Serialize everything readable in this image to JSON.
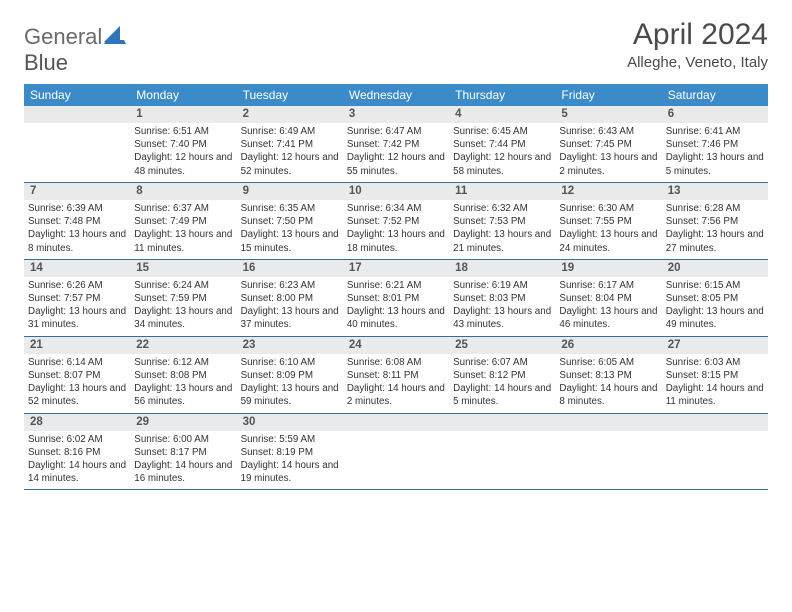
{
  "brand": {
    "part1": "General",
    "part2": "Blue"
  },
  "title": "April 2024",
  "location": "Alleghe, Veneto, Italy",
  "colors": {
    "header_bg": "#3b8bc9",
    "header_fg": "#ffffff",
    "band_bg": "#e9eaeb",
    "rule": "#3b6a94",
    "logo_blue": "#2f76b9",
    "text": "#333333"
  },
  "dow": [
    "Sunday",
    "Monday",
    "Tuesday",
    "Wednesday",
    "Thursday",
    "Friday",
    "Saturday"
  ],
  "first_weekday": 1,
  "days": [
    {
      "n": 1,
      "sr": "6:51 AM",
      "ss": "7:40 PM",
      "dl": "12 hours and 48 minutes."
    },
    {
      "n": 2,
      "sr": "6:49 AM",
      "ss": "7:41 PM",
      "dl": "12 hours and 52 minutes."
    },
    {
      "n": 3,
      "sr": "6:47 AM",
      "ss": "7:42 PM",
      "dl": "12 hours and 55 minutes."
    },
    {
      "n": 4,
      "sr": "6:45 AM",
      "ss": "7:44 PM",
      "dl": "12 hours and 58 minutes."
    },
    {
      "n": 5,
      "sr": "6:43 AM",
      "ss": "7:45 PM",
      "dl": "13 hours and 2 minutes."
    },
    {
      "n": 6,
      "sr": "6:41 AM",
      "ss": "7:46 PM",
      "dl": "13 hours and 5 minutes."
    },
    {
      "n": 7,
      "sr": "6:39 AM",
      "ss": "7:48 PM",
      "dl": "13 hours and 8 minutes."
    },
    {
      "n": 8,
      "sr": "6:37 AM",
      "ss": "7:49 PM",
      "dl": "13 hours and 11 minutes."
    },
    {
      "n": 9,
      "sr": "6:35 AM",
      "ss": "7:50 PM",
      "dl": "13 hours and 15 minutes."
    },
    {
      "n": 10,
      "sr": "6:34 AM",
      "ss": "7:52 PM",
      "dl": "13 hours and 18 minutes."
    },
    {
      "n": 11,
      "sr": "6:32 AM",
      "ss": "7:53 PM",
      "dl": "13 hours and 21 minutes."
    },
    {
      "n": 12,
      "sr": "6:30 AM",
      "ss": "7:55 PM",
      "dl": "13 hours and 24 minutes."
    },
    {
      "n": 13,
      "sr": "6:28 AM",
      "ss": "7:56 PM",
      "dl": "13 hours and 27 minutes."
    },
    {
      "n": 14,
      "sr": "6:26 AM",
      "ss": "7:57 PM",
      "dl": "13 hours and 31 minutes."
    },
    {
      "n": 15,
      "sr": "6:24 AM",
      "ss": "7:59 PM",
      "dl": "13 hours and 34 minutes."
    },
    {
      "n": 16,
      "sr": "6:23 AM",
      "ss": "8:00 PM",
      "dl": "13 hours and 37 minutes."
    },
    {
      "n": 17,
      "sr": "6:21 AM",
      "ss": "8:01 PM",
      "dl": "13 hours and 40 minutes."
    },
    {
      "n": 18,
      "sr": "6:19 AM",
      "ss": "8:03 PM",
      "dl": "13 hours and 43 minutes."
    },
    {
      "n": 19,
      "sr": "6:17 AM",
      "ss": "8:04 PM",
      "dl": "13 hours and 46 minutes."
    },
    {
      "n": 20,
      "sr": "6:15 AM",
      "ss": "8:05 PM",
      "dl": "13 hours and 49 minutes."
    },
    {
      "n": 21,
      "sr": "6:14 AM",
      "ss": "8:07 PM",
      "dl": "13 hours and 52 minutes."
    },
    {
      "n": 22,
      "sr": "6:12 AM",
      "ss": "8:08 PM",
      "dl": "13 hours and 56 minutes."
    },
    {
      "n": 23,
      "sr": "6:10 AM",
      "ss": "8:09 PM",
      "dl": "13 hours and 59 minutes."
    },
    {
      "n": 24,
      "sr": "6:08 AM",
      "ss": "8:11 PM",
      "dl": "14 hours and 2 minutes."
    },
    {
      "n": 25,
      "sr": "6:07 AM",
      "ss": "8:12 PM",
      "dl": "14 hours and 5 minutes."
    },
    {
      "n": 26,
      "sr": "6:05 AM",
      "ss": "8:13 PM",
      "dl": "14 hours and 8 minutes."
    },
    {
      "n": 27,
      "sr": "6:03 AM",
      "ss": "8:15 PM",
      "dl": "14 hours and 11 minutes."
    },
    {
      "n": 28,
      "sr": "6:02 AM",
      "ss": "8:16 PM",
      "dl": "14 hours and 14 minutes."
    },
    {
      "n": 29,
      "sr": "6:00 AM",
      "ss": "8:17 PM",
      "dl": "14 hours and 16 minutes."
    },
    {
      "n": 30,
      "sr": "5:59 AM",
      "ss": "8:19 PM",
      "dl": "14 hours and 19 minutes."
    }
  ],
  "labels": {
    "sunrise": "Sunrise:",
    "sunset": "Sunset:",
    "daylight": "Daylight:"
  }
}
